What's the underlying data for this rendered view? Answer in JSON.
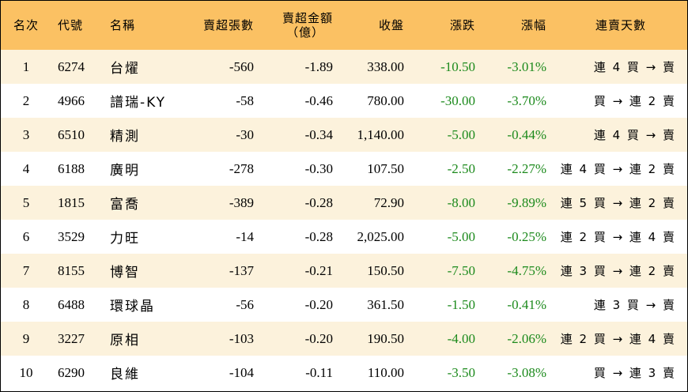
{
  "headers": {
    "rank": "名次",
    "code": "代號",
    "name": "名稱",
    "sell_lots": "賣超張數",
    "sell_amount_line1": "賣超金額",
    "sell_amount_line2": "（億）",
    "close": "收盤",
    "change": "漲跌",
    "change_pct": "漲幅",
    "consecutive": "連賣天數"
  },
  "colors": {
    "header_bg": "#fbc163",
    "row_alt_bg": "#fcf2dc",
    "change_color": "#1c8a1c"
  },
  "rows": [
    {
      "rank": "1",
      "code": "6274",
      "name": "台燿",
      "sell_lots": "-560",
      "sell_amount": "-1.89",
      "close": "338.00",
      "change": "-10.50",
      "change_pct": "-3.01%",
      "consecutive": "連 4 買 → 賣"
    },
    {
      "rank": "2",
      "code": "4966",
      "name": "譜瑞-KY",
      "sell_lots": "-58",
      "sell_amount": "-0.46",
      "close": "780.00",
      "change": "-30.00",
      "change_pct": "-3.70%",
      "consecutive": "買 → 連 2 賣"
    },
    {
      "rank": "3",
      "code": "6510",
      "name": "精測",
      "sell_lots": "-30",
      "sell_amount": "-0.34",
      "close": "1,140.00",
      "change": "-5.00",
      "change_pct": "-0.44%",
      "consecutive": "連 4 買 → 賣"
    },
    {
      "rank": "4",
      "code": "6188",
      "name": "廣明",
      "sell_lots": "-278",
      "sell_amount": "-0.30",
      "close": "107.50",
      "change": "-2.50",
      "change_pct": "-2.27%",
      "consecutive": "連 4 買 → 連 2 賣"
    },
    {
      "rank": "5",
      "code": "1815",
      "name": "富喬",
      "sell_lots": "-389",
      "sell_amount": "-0.28",
      "close": "72.90",
      "change": "-8.00",
      "change_pct": "-9.89%",
      "consecutive": "連 5 買 → 連 2 賣"
    },
    {
      "rank": "6",
      "code": "3529",
      "name": "力旺",
      "sell_lots": "-14",
      "sell_amount": "-0.28",
      "close": "2,025.00",
      "change": "-5.00",
      "change_pct": "-0.25%",
      "consecutive": "連 2 買 → 連 4 賣"
    },
    {
      "rank": "7",
      "code": "8155",
      "name": "博智",
      "sell_lots": "-137",
      "sell_amount": "-0.21",
      "close": "150.50",
      "change": "-7.50",
      "change_pct": "-4.75%",
      "consecutive": "連 3 買 → 連 2 賣"
    },
    {
      "rank": "8",
      "code": "6488",
      "name": "環球晶",
      "sell_lots": "-56",
      "sell_amount": "-0.20",
      "close": "361.50",
      "change": "-1.50",
      "change_pct": "-0.41%",
      "consecutive": "連 3 買 → 賣"
    },
    {
      "rank": "9",
      "code": "3227",
      "name": "原相",
      "sell_lots": "-103",
      "sell_amount": "-0.20",
      "close": "190.50",
      "change": "-4.00",
      "change_pct": "-2.06%",
      "consecutive": "連 2 買 → 連 4 賣"
    },
    {
      "rank": "10",
      "code": "6290",
      "name": "良維",
      "sell_lots": "-104",
      "sell_amount": "-0.11",
      "close": "110.00",
      "change": "-3.50",
      "change_pct": "-3.08%",
      "consecutive": "買 → 連 3 賣"
    }
  ]
}
